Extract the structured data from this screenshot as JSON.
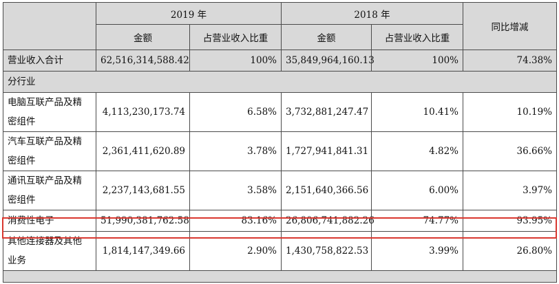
{
  "header": {
    "year_2019": "2019 年",
    "year_2018": "2018 年",
    "yoy_change": "同比增减",
    "amount_2019": "金额",
    "ratio_2019": "占营业收入比重",
    "amount_2018": "金额",
    "ratio_2018": "占营业收入比重"
  },
  "total_row": {
    "label": "营业收入合计",
    "amount_2019": "62,516,314,588.42",
    "ratio_2019": "100%",
    "amount_2018": "35,849,964,160.13",
    "ratio_2018": "100%",
    "yoy": "74.38%"
  },
  "section_label": "分行业",
  "rows": [
    {
      "label_line1": "电脑互联产品及精",
      "label_line2": "密组件",
      "amount_2019": "4,113,230,173.74",
      "ratio_2019": "6.58%",
      "amount_2018": "3,732,881,247.47",
      "ratio_2018": "10.41%",
      "yoy": "10.19%"
    },
    {
      "label_line1": "汽车互联产品及精",
      "label_line2": "密组件",
      "amount_2019": "2,361,411,620.89",
      "ratio_2019": "3.78%",
      "amount_2018": "1,727,941,841.31",
      "ratio_2018": "4.82%",
      "yoy": "36.66%"
    },
    {
      "label_line1": "通讯互联产品及精",
      "label_line2": "密组件",
      "amount_2019": "2,237,143,681.55",
      "ratio_2019": "3.58%",
      "amount_2018": "2,151,640,366.56",
      "ratio_2018": "6.00%",
      "yoy": "3.97%"
    },
    {
      "label_line1": "消费性电子",
      "label_line2": "",
      "amount_2019": "51,990,381,762.58",
      "ratio_2019": "83.16%",
      "amount_2018": "26,806,741,882.26",
      "ratio_2018": "74.77%",
      "yoy": "93.95%"
    },
    {
      "label_line1": "其他连接器及其他",
      "label_line2": "业务",
      "amount_2019": "1,814,147,349.66",
      "ratio_2019": "2.90%",
      "amount_2018": "1,430,758,822.53",
      "ratio_2018": "3.99%",
      "yoy": "26.80%"
    }
  ],
  "colors": {
    "header_bg": "#d9d9d9",
    "highlight": "#d9372f",
    "border": "#4a4a4a"
  }
}
